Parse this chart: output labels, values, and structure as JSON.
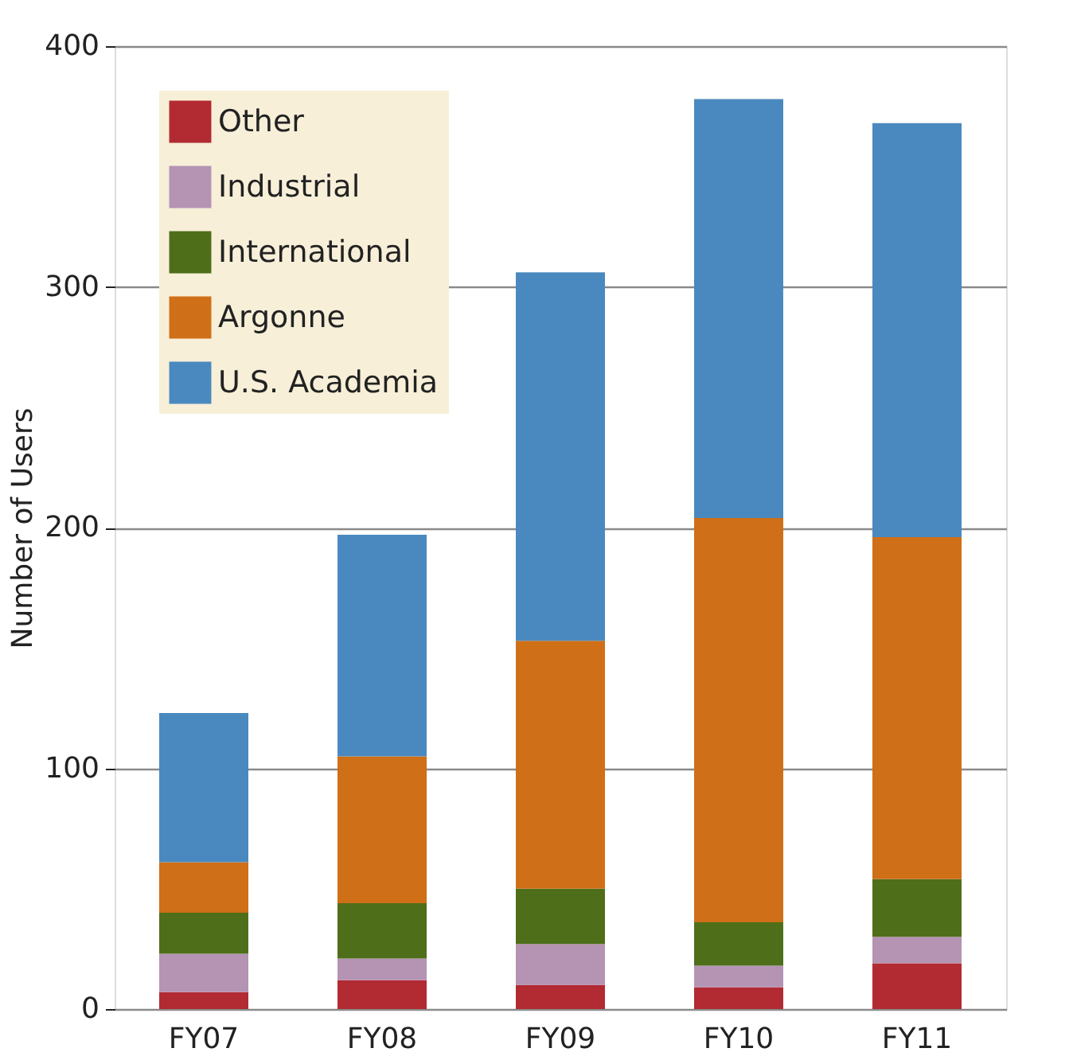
{
  "chart_data": {
    "type": "bar",
    "stacked": true,
    "ylabel": "Number of Users",
    "categories": [
      "FY07",
      "FY08",
      "FY09",
      "FY10",
      "FY11"
    ],
    "series": [
      {
        "name": "Other",
        "color": "#b22a32",
        "values": [
          7,
          12,
          10,
          9,
          19
        ]
      },
      {
        "name": "Industrial",
        "color": "#b493b3",
        "values": [
          16,
          9,
          17,
          9,
          11
        ]
      },
      {
        "name": "International",
        "color": "#4e6e19",
        "values": [
          17,
          23,
          23,
          18,
          24
        ]
      },
      {
        "name": "Argonne",
        "color": "#cf6f17",
        "values": [
          21,
          61,
          103,
          168,
          142
        ]
      },
      {
        "name": "U.S. Academia",
        "color": "#4a89bf",
        "values": [
          62,
          92,
          153,
          174,
          172
        ]
      }
    ],
    "ylim": [
      0,
      400
    ],
    "yticks": [
      0,
      100,
      200,
      300,
      400
    ],
    "grid": "y",
    "legend": "top left"
  }
}
